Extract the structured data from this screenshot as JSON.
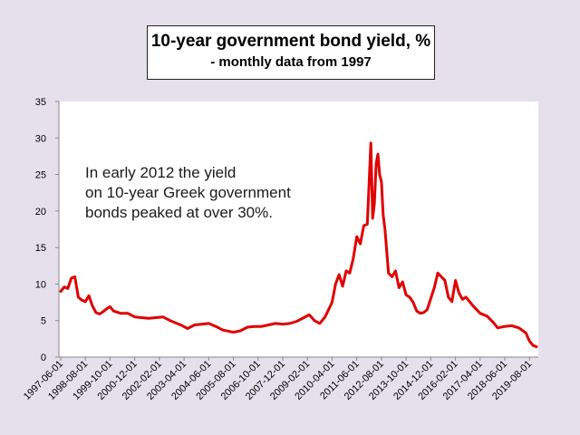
{
  "title": {
    "line1": "10-year government bond yield, %",
    "line2": "- monthly data from 1997"
  },
  "annotation": {
    "line1": "In early 2012 the yield",
    "line2": "on 10-year Greek government",
    "line3": "bonds peaked at over 30%."
  },
  "chart_data": {
    "type": "line",
    "title": "10-year government bond yield, %",
    "subtitle": "- monthly data from 1997",
    "ylim": [
      0,
      35
    ],
    "y_ticks": [
      0,
      5,
      10,
      15,
      20,
      25,
      30,
      35
    ],
    "x_tick_labels": [
      "1997-06-01",
      "1998-08-01",
      "1999-10-01",
      "2000-12-01",
      "2002-02-01",
      "2003-04-01",
      "2004-06-01",
      "2005-08-01",
      "2006-10-01",
      "2007-12-01",
      "2009-02-01",
      "2010-04-01",
      "2011-06-01",
      "2012-08-01",
      "2013-10-01",
      "2014-12-01",
      "2016-02-01",
      "2017-04-01",
      "2018-06-01",
      "2019-08-01"
    ],
    "grid": false,
    "legend": "none",
    "line_color": "#e00000",
    "series": [
      {
        "points": [
          [
            "1997-06-01",
            9.0
          ],
          [
            "1997-08-01",
            9.6
          ],
          [
            "1997-10-01",
            9.4
          ],
          [
            "1997-12-01",
            10.8
          ],
          [
            "1998-02-01",
            11.0
          ],
          [
            "1998-04-01",
            8.2
          ],
          [
            "1998-06-01",
            7.8
          ],
          [
            "1998-08-01",
            7.6
          ],
          [
            "1998-10-01",
            8.4
          ],
          [
            "1998-12-01",
            7.0
          ],
          [
            "1999-02-01",
            6.1
          ],
          [
            "1999-04-01",
            5.9
          ],
          [
            "1999-06-01",
            6.2
          ],
          [
            "1999-08-01",
            6.6
          ],
          [
            "1999-10-01",
            6.9
          ],
          [
            "1999-12-01",
            6.3
          ],
          [
            "2000-04-01",
            6.0
          ],
          [
            "2000-08-01",
            6.0
          ],
          [
            "2000-12-01",
            5.5
          ],
          [
            "2001-04-01",
            5.4
          ],
          [
            "2001-08-01",
            5.3
          ],
          [
            "2001-12-01",
            5.4
          ],
          [
            "2002-04-01",
            5.5
          ],
          [
            "2002-08-01",
            5.0
          ],
          [
            "2002-12-01",
            4.6
          ],
          [
            "2003-03-01",
            4.3
          ],
          [
            "2003-06-01",
            3.9
          ],
          [
            "2003-10-01",
            4.4
          ],
          [
            "2004-02-01",
            4.5
          ],
          [
            "2004-06-01",
            4.6
          ],
          [
            "2004-10-01",
            4.2
          ],
          [
            "2005-02-01",
            3.7
          ],
          [
            "2005-06-01",
            3.5
          ],
          [
            "2005-08-01",
            3.4
          ],
          [
            "2005-12-01",
            3.6
          ],
          [
            "2006-04-01",
            4.1
          ],
          [
            "2006-08-01",
            4.2
          ],
          [
            "2006-12-01",
            4.2
          ],
          [
            "2007-04-01",
            4.4
          ],
          [
            "2007-08-01",
            4.6
          ],
          [
            "2007-12-01",
            4.5
          ],
          [
            "2008-04-01",
            4.6
          ],
          [
            "2008-08-01",
            4.9
          ],
          [
            "2008-12-01",
            5.4
          ],
          [
            "2009-03-01",
            5.8
          ],
          [
            "2009-06-01",
            5.0
          ],
          [
            "2009-09-01",
            4.6
          ],
          [
            "2009-12-01",
            5.5
          ],
          [
            "2010-02-01",
            6.5
          ],
          [
            "2010-04-01",
            7.5
          ],
          [
            "2010-06-01",
            10.0
          ],
          [
            "2010-08-01",
            11.3
          ],
          [
            "2010-10-01",
            9.7
          ],
          [
            "2010-12-01",
            11.8
          ],
          [
            "2011-02-01",
            11.5
          ],
          [
            "2011-04-01",
            13.5
          ],
          [
            "2011-06-01",
            16.5
          ],
          [
            "2011-08-01",
            15.5
          ],
          [
            "2011-10-01",
            18.0
          ],
          [
            "2011-12-01",
            18.2
          ],
          [
            "2012-02-01",
            29.3
          ],
          [
            "2012-03-01",
            19.0
          ],
          [
            "2012-04-01",
            21.0
          ],
          [
            "2012-05-01",
            26.5
          ],
          [
            "2012-06-01",
            27.8
          ],
          [
            "2012-07-01",
            25.0
          ],
          [
            "2012-08-01",
            24.0
          ],
          [
            "2012-09-01",
            19.5
          ],
          [
            "2012-10-01",
            17.5
          ],
          [
            "2012-12-01",
            11.5
          ],
          [
            "2013-02-01",
            11.0
          ],
          [
            "2013-04-01",
            11.8
          ],
          [
            "2013-06-01",
            9.5
          ],
          [
            "2013-08-01",
            10.3
          ],
          [
            "2013-10-01",
            8.5
          ],
          [
            "2013-12-01",
            8.2
          ],
          [
            "2014-02-01",
            7.5
          ],
          [
            "2014-04-01",
            6.3
          ],
          [
            "2014-06-01",
            6.0
          ],
          [
            "2014-08-01",
            6.1
          ],
          [
            "2014-10-01",
            6.5
          ],
          [
            "2014-12-01",
            8.0
          ],
          [
            "2015-02-01",
            9.5
          ],
          [
            "2015-04-01",
            11.5
          ],
          [
            "2015-06-01",
            11.0
          ],
          [
            "2015-08-01",
            10.5
          ],
          [
            "2015-10-01",
            8.2
          ],
          [
            "2015-12-01",
            7.6
          ],
          [
            "2016-02-01",
            10.5
          ],
          [
            "2016-04-01",
            8.8
          ],
          [
            "2016-06-01",
            7.9
          ],
          [
            "2016-08-01",
            8.2
          ],
          [
            "2016-12-01",
            7.0
          ],
          [
            "2017-04-01",
            6.0
          ],
          [
            "2017-08-01",
            5.6
          ],
          [
            "2017-12-01",
            4.6
          ],
          [
            "2018-02-01",
            4.0
          ],
          [
            "2018-06-01",
            4.2
          ],
          [
            "2018-10-01",
            4.3
          ],
          [
            "2019-02-01",
            4.0
          ],
          [
            "2019-06-01",
            3.3
          ],
          [
            "2019-08-01",
            2.2
          ],
          [
            "2019-10-01",
            1.6
          ],
          [
            "2019-12-01",
            1.4
          ]
        ]
      }
    ]
  }
}
